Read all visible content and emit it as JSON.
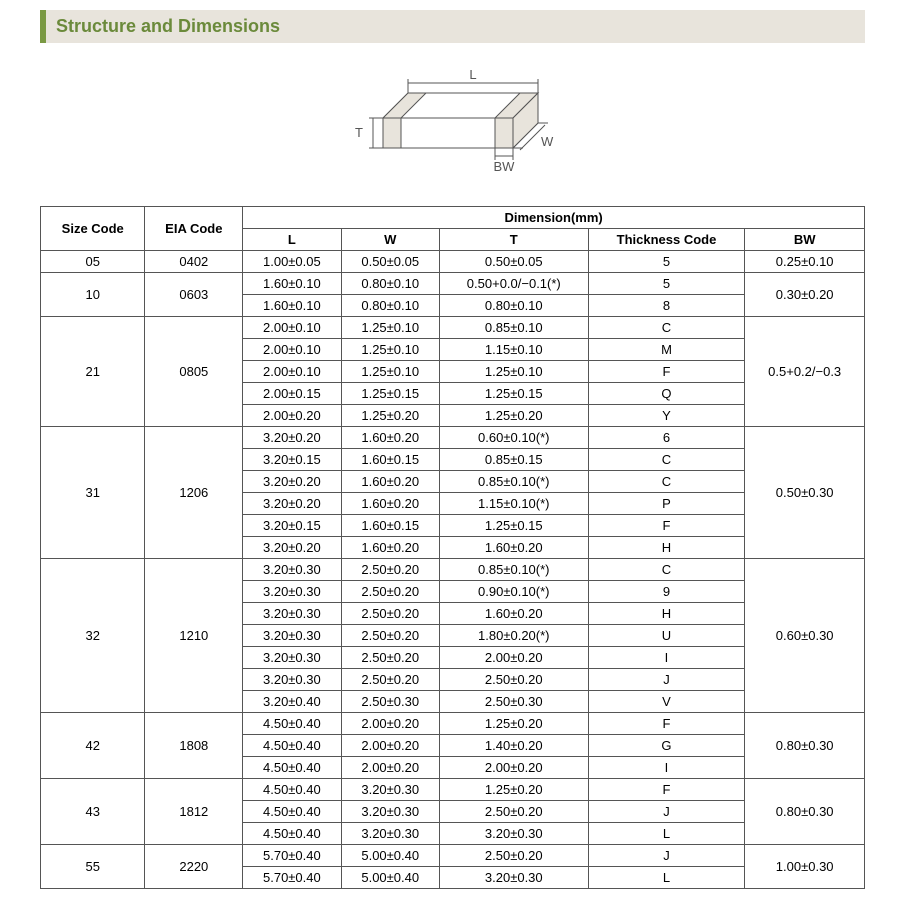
{
  "section_title": "Structure and Dimensions",
  "diagram": {
    "labels": {
      "L": "L",
      "W": "W",
      "T": "T",
      "BW": "BW"
    },
    "stroke_color": "#555555",
    "fill_color": "#ffffff",
    "bw_fill": "#e8e4dc"
  },
  "table": {
    "headers": {
      "size_code": "Size Code",
      "eia_code": "EIA Code",
      "dimension": "Dimension(mm)",
      "L": "L",
      "W": "W",
      "T": "T",
      "thickness_code": "Thickness Code",
      "BW": "BW"
    },
    "groups": [
      {
        "size_code": "05",
        "eia_code": "0402",
        "bw": "0.25±0.10",
        "rows": [
          {
            "L": "1.00±0.05",
            "W": "0.50±0.05",
            "T": "0.50±0.05",
            "tc": "5"
          }
        ]
      },
      {
        "size_code": "10",
        "eia_code": "0603",
        "bw": "0.30±0.20",
        "rows": [
          {
            "L": "1.60±0.10",
            "W": "0.80±0.10",
            "T": "0.50+0.0/−0.1(*)",
            "tc": "5"
          },
          {
            "L": "1.60±0.10",
            "W": "0.80±0.10",
            "T": "0.80±0.10",
            "tc": "8"
          }
        ]
      },
      {
        "size_code": "21",
        "eia_code": "0805",
        "bw": "0.5+0.2/−0.3",
        "rows": [
          {
            "L": "2.00±0.10",
            "W": "1.25±0.10",
            "T": "0.85±0.10",
            "tc": "C"
          },
          {
            "L": "2.00±0.10",
            "W": "1.25±0.10",
            "T": "1.15±0.10",
            "tc": "M"
          },
          {
            "L": "2.00±0.10",
            "W": "1.25±0.10",
            "T": "1.25±0.10",
            "tc": "F"
          },
          {
            "L": "2.00±0.15",
            "W": "1.25±0.15",
            "T": "1.25±0.15",
            "tc": "Q"
          },
          {
            "L": "2.00±0.20",
            "W": "1.25±0.20",
            "T": "1.25±0.20",
            "tc": "Y"
          }
        ]
      },
      {
        "size_code": "31",
        "eia_code": "1206",
        "bw": "0.50±0.30",
        "rows": [
          {
            "L": "3.20±0.20",
            "W": "1.60±0.20",
            "T": "0.60±0.10(*)",
            "tc": "6"
          },
          {
            "L": "3.20±0.15",
            "W": "1.60±0.15",
            "T": "0.85±0.15",
            "tc": "C"
          },
          {
            "L": "3.20±0.20",
            "W": "1.60±0.20",
            "T": "0.85±0.10(*)",
            "tc": "C"
          },
          {
            "L": "3.20±0.20",
            "W": "1.60±0.20",
            "T": "1.15±0.10(*)",
            "tc": "P"
          },
          {
            "L": "3.20±0.15",
            "W": "1.60±0.15",
            "T": "1.25±0.15",
            "tc": "F"
          },
          {
            "L": "3.20±0.20",
            "W": "1.60±0.20",
            "T": "1.60±0.20",
            "tc": "H"
          }
        ]
      },
      {
        "size_code": "32",
        "eia_code": "1210",
        "bw": "0.60±0.30",
        "rows": [
          {
            "L": "3.20±0.30",
            "W": "2.50±0.20",
            "T": "0.85±0.10(*)",
            "tc": "C"
          },
          {
            "L": "3.20±0.30",
            "W": "2.50±0.20",
            "T": "0.90±0.10(*)",
            "tc": "9"
          },
          {
            "L": "3.20±0.30",
            "W": "2.50±0.20",
            "T": "1.60±0.20",
            "tc": "H"
          },
          {
            "L": "3.20±0.30",
            "W": "2.50±0.20",
            "T": "1.80±0.20(*)",
            "tc": "U"
          },
          {
            "L": "3.20±0.30",
            "W": "2.50±0.20",
            "T": "2.00±0.20",
            "tc": "I"
          },
          {
            "L": "3.20±0.30",
            "W": "2.50±0.20",
            "T": "2.50±0.20",
            "tc": "J"
          },
          {
            "L": "3.20±0.40",
            "W": "2.50±0.30",
            "T": "2.50±0.30",
            "tc": "V"
          }
        ]
      },
      {
        "size_code": "42",
        "eia_code": "1808",
        "bw": "0.80±0.30",
        "rows": [
          {
            "L": "4.50±0.40",
            "W": "2.00±0.20",
            "T": "1.25±0.20",
            "tc": "F"
          },
          {
            "L": "4.50±0.40",
            "W": "2.00±0.20",
            "T": "1.40±0.20",
            "tc": "G"
          },
          {
            "L": "4.50±0.40",
            "W": "2.00±0.20",
            "T": "2.00±0.20",
            "tc": "I"
          }
        ]
      },
      {
        "size_code": "43",
        "eia_code": "1812",
        "bw": "0.80±0.30",
        "rows": [
          {
            "L": "4.50±0.40",
            "W": "3.20±0.30",
            "T": "1.25±0.20",
            "tc": "F"
          },
          {
            "L": "4.50±0.40",
            "W": "3.20±0.30",
            "T": "2.50±0.20",
            "tc": "J"
          },
          {
            "L": "4.50±0.40",
            "W": "3.20±0.30",
            "T": "3.20±0.30",
            "tc": "L"
          }
        ]
      },
      {
        "size_code": "55",
        "eia_code": "2220",
        "bw": "1.00±0.30",
        "rows": [
          {
            "L": "5.70±0.40",
            "W": "5.00±0.40",
            "T": "2.50±0.20",
            "tc": "J"
          },
          {
            "L": "5.70±0.40",
            "W": "5.00±0.40",
            "T": "3.20±0.30",
            "tc": "L"
          }
        ]
      }
    ]
  },
  "style": {
    "banner_bg": "#e8e4dc",
    "banner_border": "#7a9943",
    "banner_text": "#6b8a3b",
    "table_border": "#555555",
    "font_size_title": 18,
    "font_size_table": 13
  }
}
